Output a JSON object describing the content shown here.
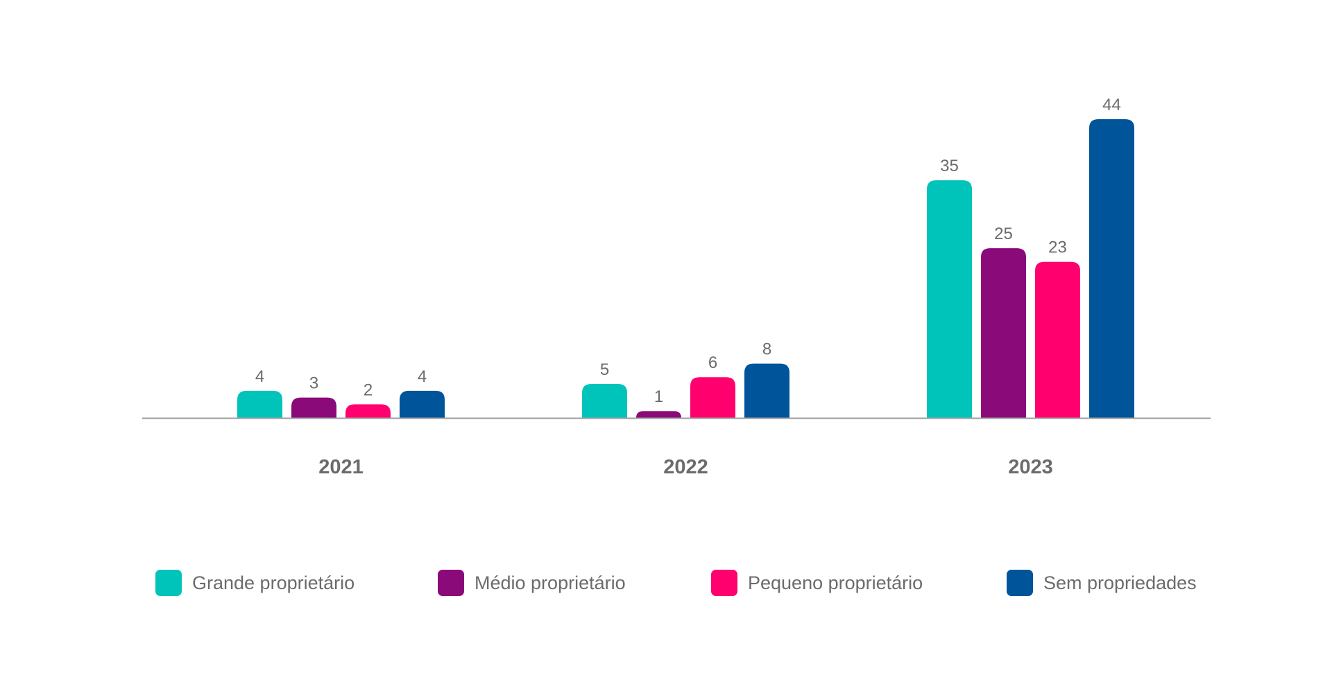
{
  "chart_data": {
    "type": "bar",
    "title": "",
    "xlabel": "",
    "ylabel": "",
    "categories": [
      "2021",
      "2022",
      "2023"
    ],
    "series": [
      {
        "name": "Grande proprietário",
        "values": [
          4,
          5,
          35
        ],
        "color": "#00c4b9"
      },
      {
        "name": "Médio proprietário",
        "values": [
          3,
          1,
          25
        ],
        "color": "#8a0a7a"
      },
      {
        "name": "Pequeno proprietário",
        "values": [
          2,
          6,
          23
        ],
        "color": "#ff006e"
      },
      {
        "name": "Sem propriedades",
        "values": [
          4,
          8,
          44
        ],
        "color": "#005499"
      }
    ],
    "ylim": [
      0,
      44
    ],
    "grid": false,
    "legend_position": "bottom",
    "data_labels": true
  },
  "colors": {
    "label_text": "#6b6b6b",
    "axis_line": "#9e9e9e"
  }
}
